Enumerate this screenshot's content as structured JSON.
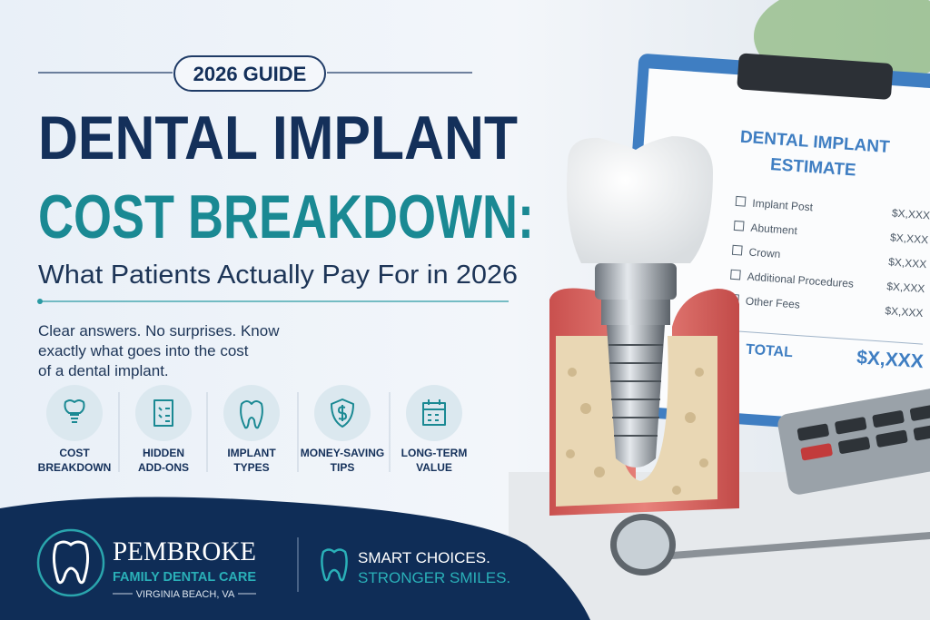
{
  "badge": "2026 GUIDE",
  "title": {
    "line1": "DENTAL IMPLANT",
    "line2": "COST BREAKDOWN:"
  },
  "subtitle": "What Patients Actually Pay For in 2026",
  "intro": [
    "Clear answers. No surprises. Know",
    "exactly what goes into the cost",
    "of a dental implant."
  ],
  "features": [
    {
      "lines": [
        "COST",
        "BREAKDOWN"
      ]
    },
    {
      "lines": [
        "HIDDEN",
        "ADD-ONS"
      ]
    },
    {
      "lines": [
        "IMPLANT",
        "TYPES"
      ]
    },
    {
      "lines": [
        "MONEY-SAVING",
        "TIPS"
      ]
    },
    {
      "lines": [
        "LONG-TERM",
        "VALUE"
      ]
    }
  ],
  "estimate": {
    "title": [
      "DENTAL IMPLANT",
      "ESTIMATE"
    ],
    "items": [
      {
        "label": "Implant Post",
        "price": "$X,XXX"
      },
      {
        "label": "Abutment",
        "price": "$X,XXX"
      },
      {
        "label": "Crown",
        "price": "$X,XXX"
      },
      {
        "label": "Additional Procedures",
        "price": "$X,XXX"
      },
      {
        "label": "Other Fees",
        "price": "$X,XXX"
      }
    ],
    "total_label": "TOTAL",
    "total_price": "$X,XXX"
  },
  "brand": {
    "name": "PEMBROKE",
    "sub": "FAMILY DENTAL CARE",
    "location": "VIRGINIA BEACH, VA"
  },
  "tagline": [
    "SMART CHOICES.",
    "STRONGER SMILES."
  ]
}
